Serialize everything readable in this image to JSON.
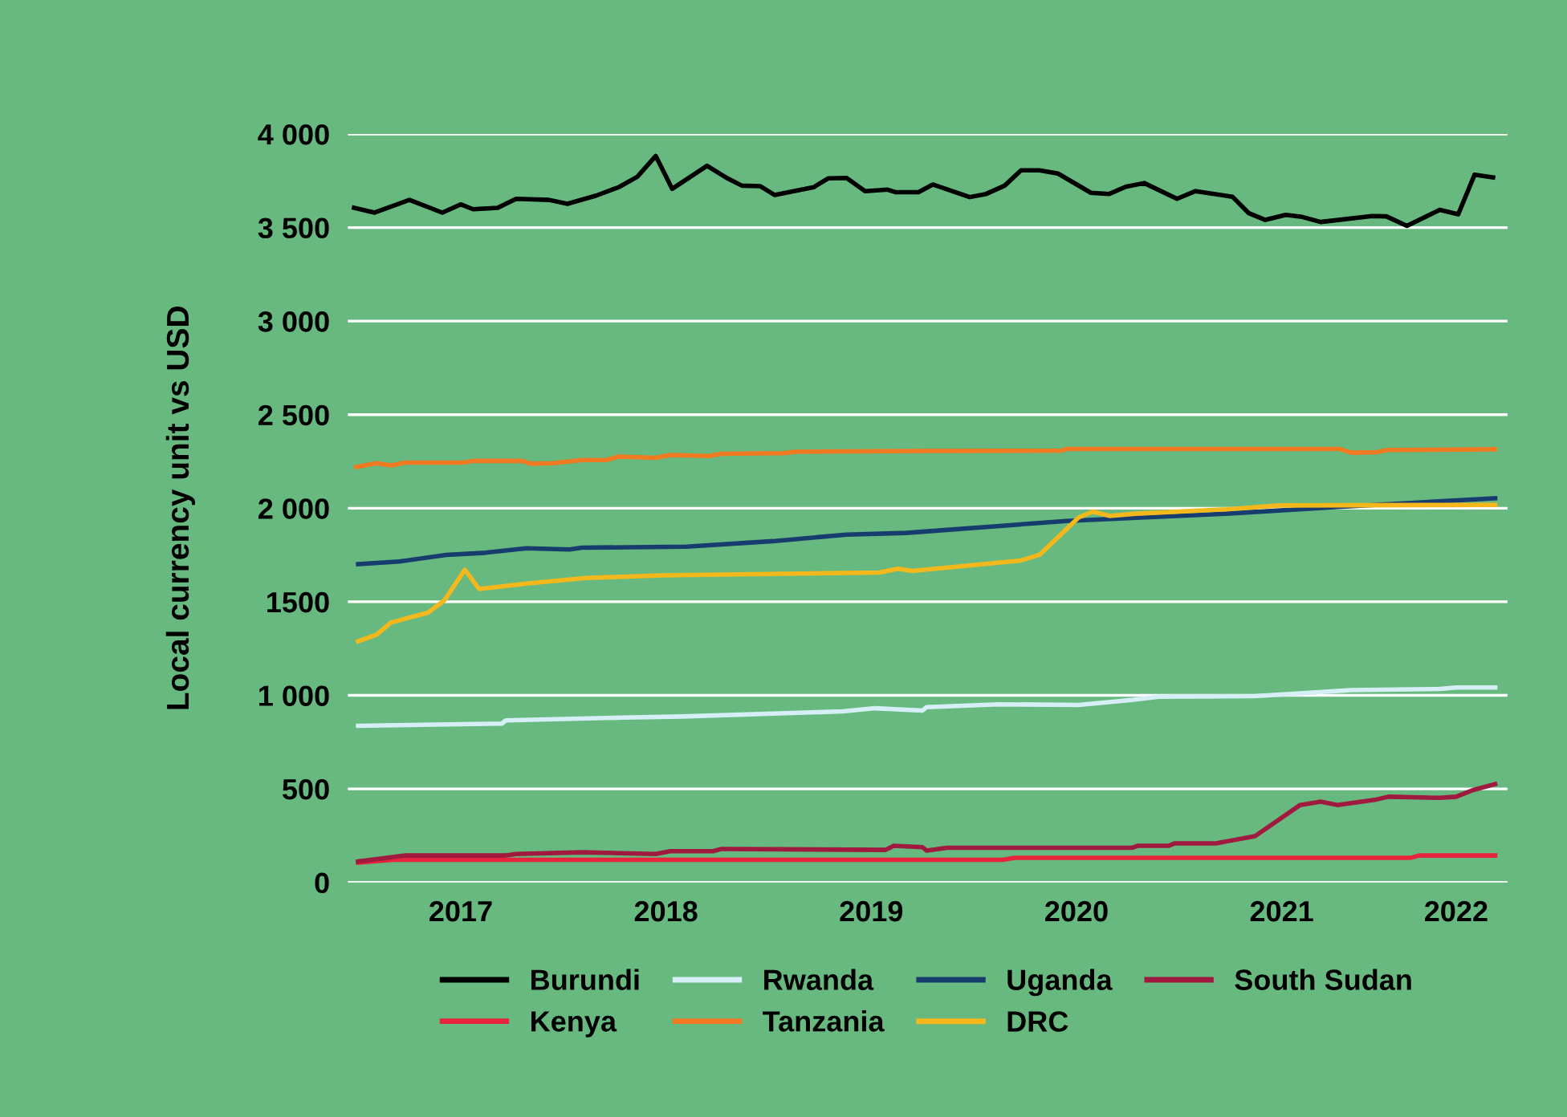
{
  "chart_data": {
    "type": "line",
    "ylabel": "Local currency unit vs USD",
    "xlim": [
      2016.45,
      2022.1
    ],
    "xticks": [
      2017,
      2018,
      2019,
      2020,
      2021,
      {
        "value": 2021.85,
        "label": "2022"
      }
    ],
    "ylim": [
      0,
      4000
    ],
    "yticks": [
      0,
      500,
      {
        "value": 1000,
        "label": "1 000"
      },
      {
        "value": 1500,
        "label": "1500"
      },
      {
        "value": 2000,
        "label": "2 000"
      },
      {
        "value": 2500,
        "label": "2 500"
      },
      {
        "value": 3000,
        "label": "3 000"
      },
      {
        "value": 3500,
        "label": "3 500"
      },
      {
        "value": 4000,
        "label": "4 000"
      }
    ],
    "grid": "y",
    "legend": "bottom",
    "marker": "none",
    "line_style": "solid",
    "series": [
      {
        "name": "Burundi",
        "color": "#000000",
        "x": [
          2016.48,
          2016.58,
          2016.75,
          2016.91,
          2017.0,
          2017.06,
          2017.18,
          2017.27,
          2017.43,
          2017.52,
          2017.66,
          2017.77,
          2017.86,
          2017.95,
          2018.03,
          2018.2,
          2018.3,
          2018.37,
          2018.46,
          2018.53,
          2018.72,
          2018.79,
          2018.88,
          2018.97,
          2019.08,
          2019.12,
          2019.23,
          2019.3,
          2019.48,
          2019.56,
          2019.65,
          2019.73,
          2019.82,
          2019.91,
          2020.07,
          2020.16,
          2020.24,
          2020.33,
          2020.49,
          2020.58,
          2020.76,
          2020.84,
          2020.92,
          2021.02,
          2021.1,
          2021.19,
          2021.44,
          2021.51,
          2021.61,
          2021.77,
          2021.86,
          2021.94,
          2022.03
        ],
        "values": [
          3606,
          3580,
          3648,
          3580,
          3624,
          3598,
          3606,
          3654,
          3648,
          3627,
          3671,
          3716,
          3771,
          3883,
          3707,
          3830,
          3763,
          3724,
          3721,
          3674,
          3716,
          3763,
          3765,
          3695,
          3703,
          3689,
          3689,
          3730,
          3663,
          3680,
          3724,
          3806,
          3806,
          3789,
          3686,
          3680,
          3718,
          3738,
          3654,
          3695,
          3665,
          3577,
          3541,
          3568,
          3557,
          3530,
          3562,
          3560,
          3509,
          3595,
          3571,
          3783,
          3768
        ]
      },
      {
        "name": "Kenya",
        "color": "#e8243c",
        "x": [
          2016.5,
          2016.67,
          2019.25,
          2019.64,
          2019.7,
          2021.63,
          2021.67,
          2022.04
        ],
        "values": [
          106,
          121,
          121,
          121,
          132,
          132,
          144,
          144
        ]
      },
      {
        "name": "Rwanda",
        "color": "#d6eef5",
        "x": [
          2016.5,
          2017.2,
          2017.22,
          2017.79,
          2018.08,
          2018.86,
          2019.02,
          2019.25,
          2019.27,
          2019.62,
          2020.01,
          2020.27,
          2020.4,
          2020.87,
          2021.34,
          2021.77,
          2021.85,
          2022.04
        ],
        "values": [
          837,
          849,
          866,
          881,
          887,
          914,
          931,
          919,
          937,
          952,
          949,
          975,
          993,
          996,
          1028,
          1034,
          1042,
          1042
        ]
      },
      {
        "name": "Tanzania",
        "color": "#f07a22",
        "x": [
          2016.49,
          2016.59,
          2016.66,
          2016.73,
          2017.01,
          2017.06,
          2017.3,
          2017.34,
          2017.45,
          2017.59,
          2017.71,
          2017.77,
          2017.95,
          2018.02,
          2018.21,
          2018.27,
          2018.57,
          2018.63,
          2019.25,
          2019.93,
          2019.95,
          2021.28,
          2021.34,
          2021.46,
          2021.52,
          2022.04
        ],
        "values": [
          2220,
          2241,
          2229,
          2244,
          2244,
          2253,
          2253,
          2238,
          2241,
          2258,
          2258,
          2276,
          2270,
          2285,
          2279,
          2291,
          2294,
          2302,
          2306,
          2308,
          2317,
          2317,
          2297,
          2300,
          2311,
          2315
        ]
      },
      {
        "name": "Uganda",
        "color": "#163d6e",
        "x": [
          2016.5,
          2016.7,
          2016.93,
          2017.12,
          2017.32,
          2017.53,
          2017.59,
          2018.1,
          2018.52,
          2018.88,
          2019.17,
          2019.95,
          2020.73,
          2021.26,
          2022.04
        ],
        "values": [
          1701,
          1715,
          1751,
          1762,
          1786,
          1780,
          1789,
          1795,
          1824,
          1859,
          1868,
          1932,
          1971,
          2006,
          2053
        ]
      },
      {
        "name": "DRC",
        "color": "#f5b81c",
        "x": [
          2016.5,
          2016.59,
          2016.66,
          2016.84,
          2016.92,
          2017.02,
          2017.09,
          2017.32,
          2017.61,
          2017.98,
          2019.04,
          2019.13,
          2019.2,
          2019.73,
          2019.82,
          2020.01,
          2020.08,
          2020.16,
          2020.29,
          2020.73,
          2020.99,
          2022.04
        ],
        "values": [
          1289,
          1324,
          1389,
          1442,
          1507,
          1671,
          1568,
          1597,
          1627,
          1641,
          1656,
          1677,
          1665,
          1721,
          1751,
          1950,
          1982,
          1959,
          1971,
          1994,
          2015,
          2018
        ]
      },
      {
        "name": "South Sudan",
        "color": "#a0193f",
        "x": [
          2016.5,
          2016.73,
          2017.22,
          2017.27,
          2017.59,
          2017.95,
          2018.02,
          2018.23,
          2018.27,
          2019.07,
          2019.11,
          2019.25,
          2019.27,
          2019.37,
          2020.27,
          2020.3,
          2020.45,
          2020.48,
          2020.68,
          2020.87,
          2021.09,
          2021.19,
          2021.27,
          2021.46,
          2021.52,
          2021.77,
          2021.85,
          2021.93,
          2022.04
        ],
        "values": [
          112,
          144,
          144,
          152,
          161,
          152,
          167,
          167,
          179,
          174,
          196,
          188,
          170,
          185,
          185,
          196,
          196,
          209,
          209,
          247,
          414,
          432,
          414,
          443,
          458,
          452,
          458,
          493,
          526
        ]
      }
    ]
  }
}
